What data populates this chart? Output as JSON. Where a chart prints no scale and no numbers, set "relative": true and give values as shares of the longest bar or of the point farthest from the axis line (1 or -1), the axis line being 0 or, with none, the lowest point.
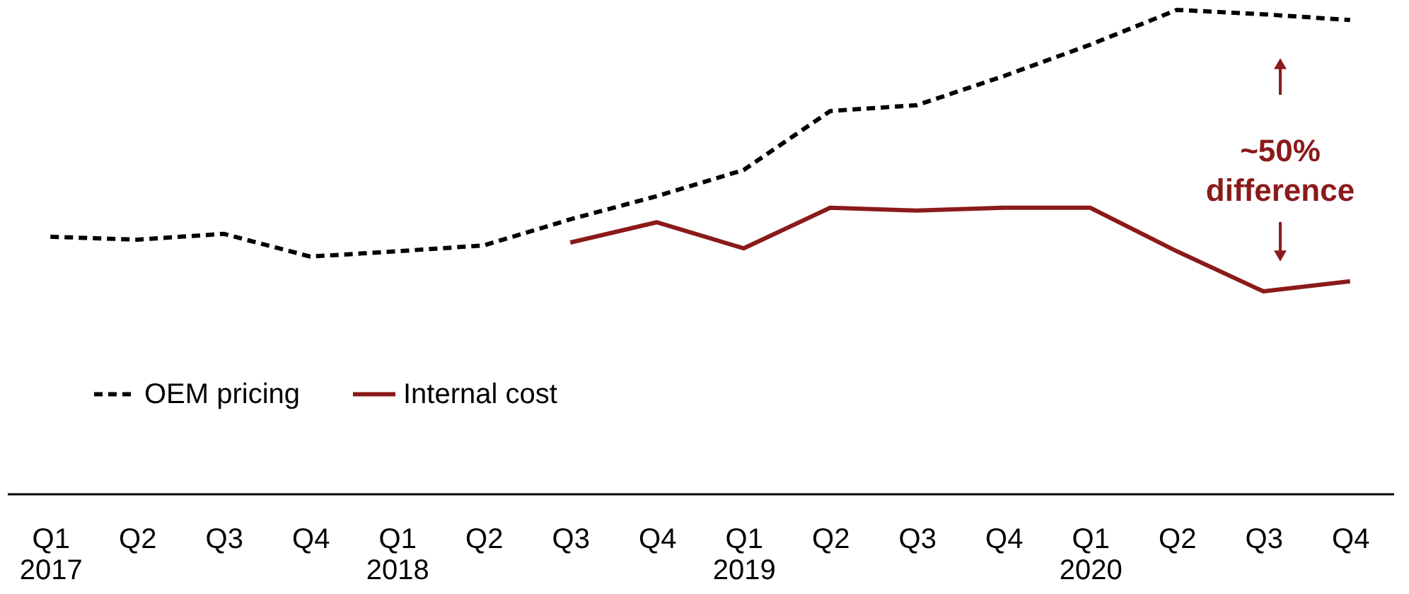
{
  "chart_data": {
    "type": "line",
    "relative": true,
    "categories": [
      "Q1\n2017",
      "Q2",
      "Q3",
      "Q4",
      "Q1\n2018",
      "Q2",
      "Q3",
      "Q4",
      "Q1\n2019",
      "Q2",
      "Q3",
      "Q4",
      "Q1\n2020",
      "Q2",
      "Q3",
      "Q4"
    ],
    "series": [
      {
        "name": "OEM pricing",
        "color": "#000000",
        "line_style": "dashed",
        "values": [
          0.531,
          0.525,
          0.537,
          0.49,
          0.501,
          0.513,
          0.567,
          0.615,
          0.669,
          0.791,
          0.803,
          0.863,
          0.928,
          1.0,
          0.991,
          0.979
        ]
      },
      {
        "name": "Internal cost",
        "color": "#8b1a1a",
        "line_style": "solid",
        "values": [
          null,
          null,
          null,
          null,
          null,
          null,
          0.519,
          0.561,
          0.507,
          0.591,
          0.585,
          0.591,
          0.591,
          0.501,
          0.418,
          0.439
        ]
      }
    ],
    "annotations": [
      "~50% difference"
    ],
    "legend": "bottom left",
    "grid": false,
    "marker": "none"
  }
}
